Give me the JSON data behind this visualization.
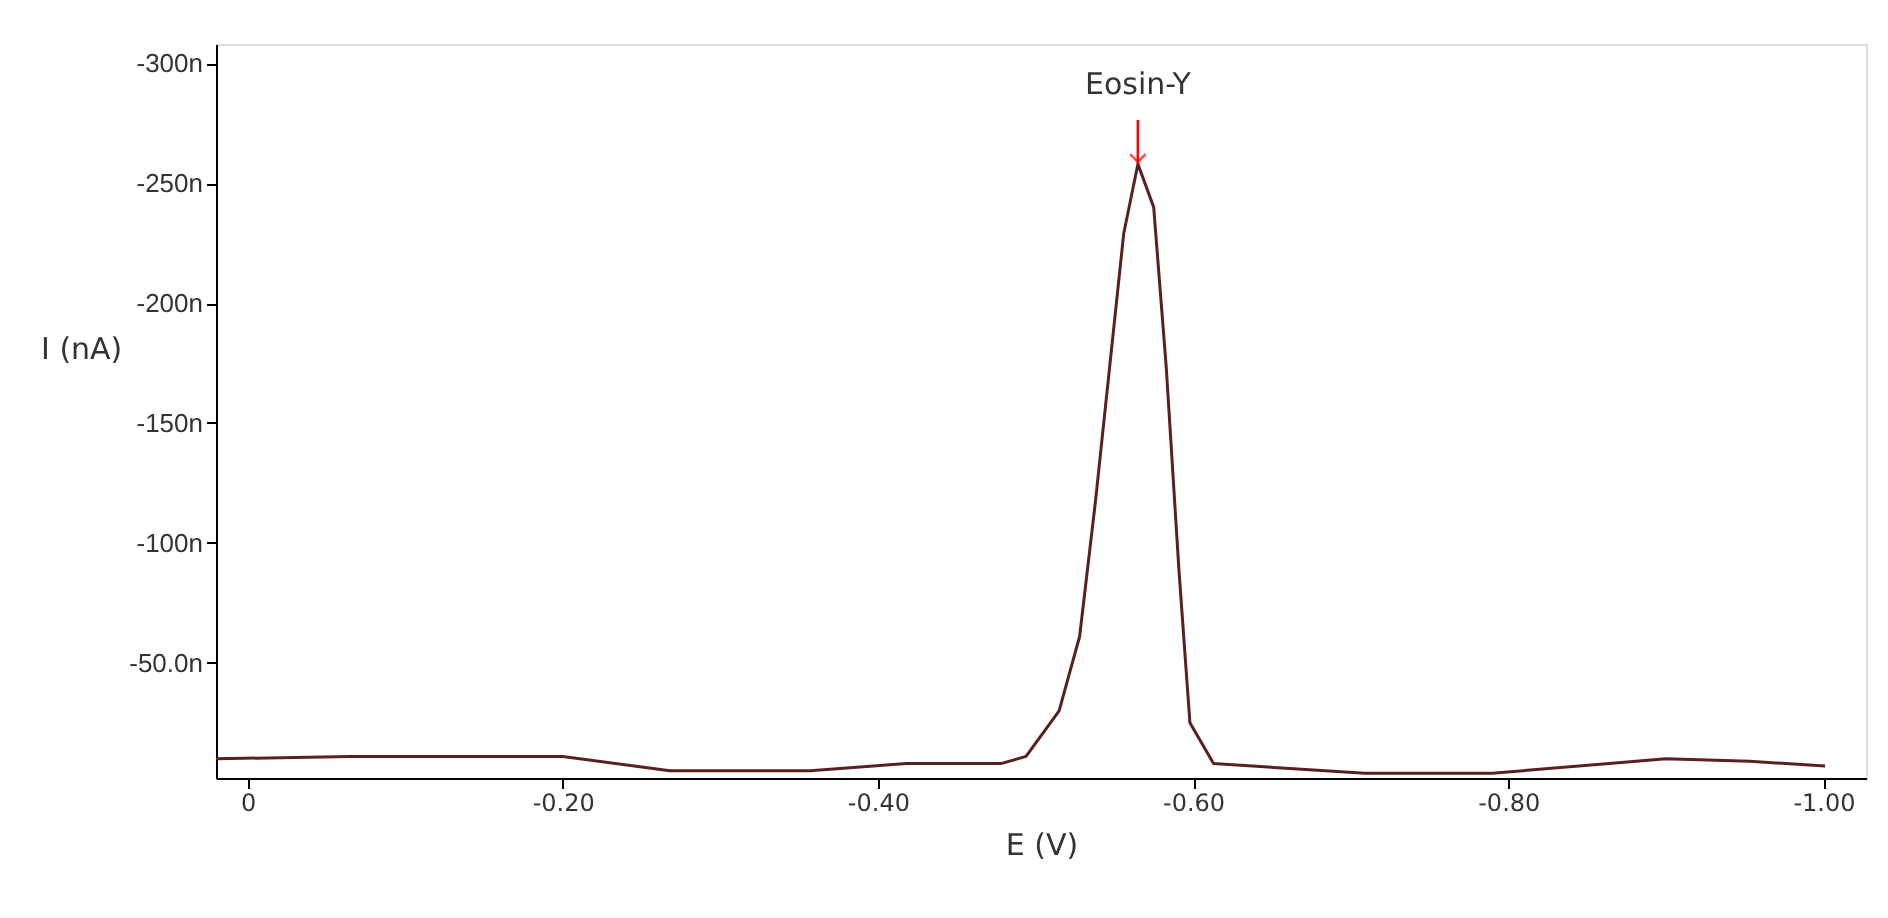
{
  "chart_data": {
    "type": "line",
    "xlabel": "E (V)",
    "ylabel": "I (nA)",
    "annotations": [
      {
        "text": "Eosin-Y",
        "x": -0.565,
        "y": -258
      }
    ],
    "series": [
      {
        "color": "#5a1f1f",
        "x": [
          0.02,
          -0.065,
          -0.146,
          -0.2,
          -0.268,
          -0.357,
          -0.418,
          -0.478,
          -0.494,
          -0.515,
          -0.528,
          -0.538,
          -0.547,
          -0.556,
          -0.565,
          -0.575,
          -0.583,
          -0.591,
          -0.598,
          -0.613,
          -0.709,
          -0.79,
          -0.9,
          -0.953,
          -1.001
        ],
        "values": [
          -10,
          -11,
          -11,
          -11,
          -5,
          -5,
          -8,
          -8,
          -11,
          -30,
          -61,
          -117,
          -173,
          -229,
          -258,
          -240,
          -173,
          -89,
          -25,
          -8,
          -4,
          -4,
          -10,
          -9,
          -7
        ]
      }
    ],
    "xlim": [
      0.02,
      -1.027
    ],
    "ylim": [
      -2,
      -308
    ],
    "xticks": [
      0,
      {
        "value": -0.2,
        "label": "-0.20"
      },
      {
        "value": -0.4,
        "label": "-0.40"
      },
      {
        "value": -0.6,
        "label": "-0.60"
      },
      {
        "value": -0.8,
        "label": "-0.80"
      },
      {
        "value": -1.0,
        "label": "-1.00"
      }
    ],
    "yticks": [
      {
        "value": -50,
        "label": "-50.0n"
      },
      {
        "value": -100,
        "label": "-100n"
      },
      {
        "value": -150,
        "label": "-150n"
      },
      {
        "value": -200,
        "label": "-200n"
      },
      {
        "value": -250,
        "label": "-250n"
      },
      {
        "value": -300,
        "label": "-300n"
      }
    ],
    "grid": false,
    "line_style": "solid",
    "marker": "none"
  }
}
